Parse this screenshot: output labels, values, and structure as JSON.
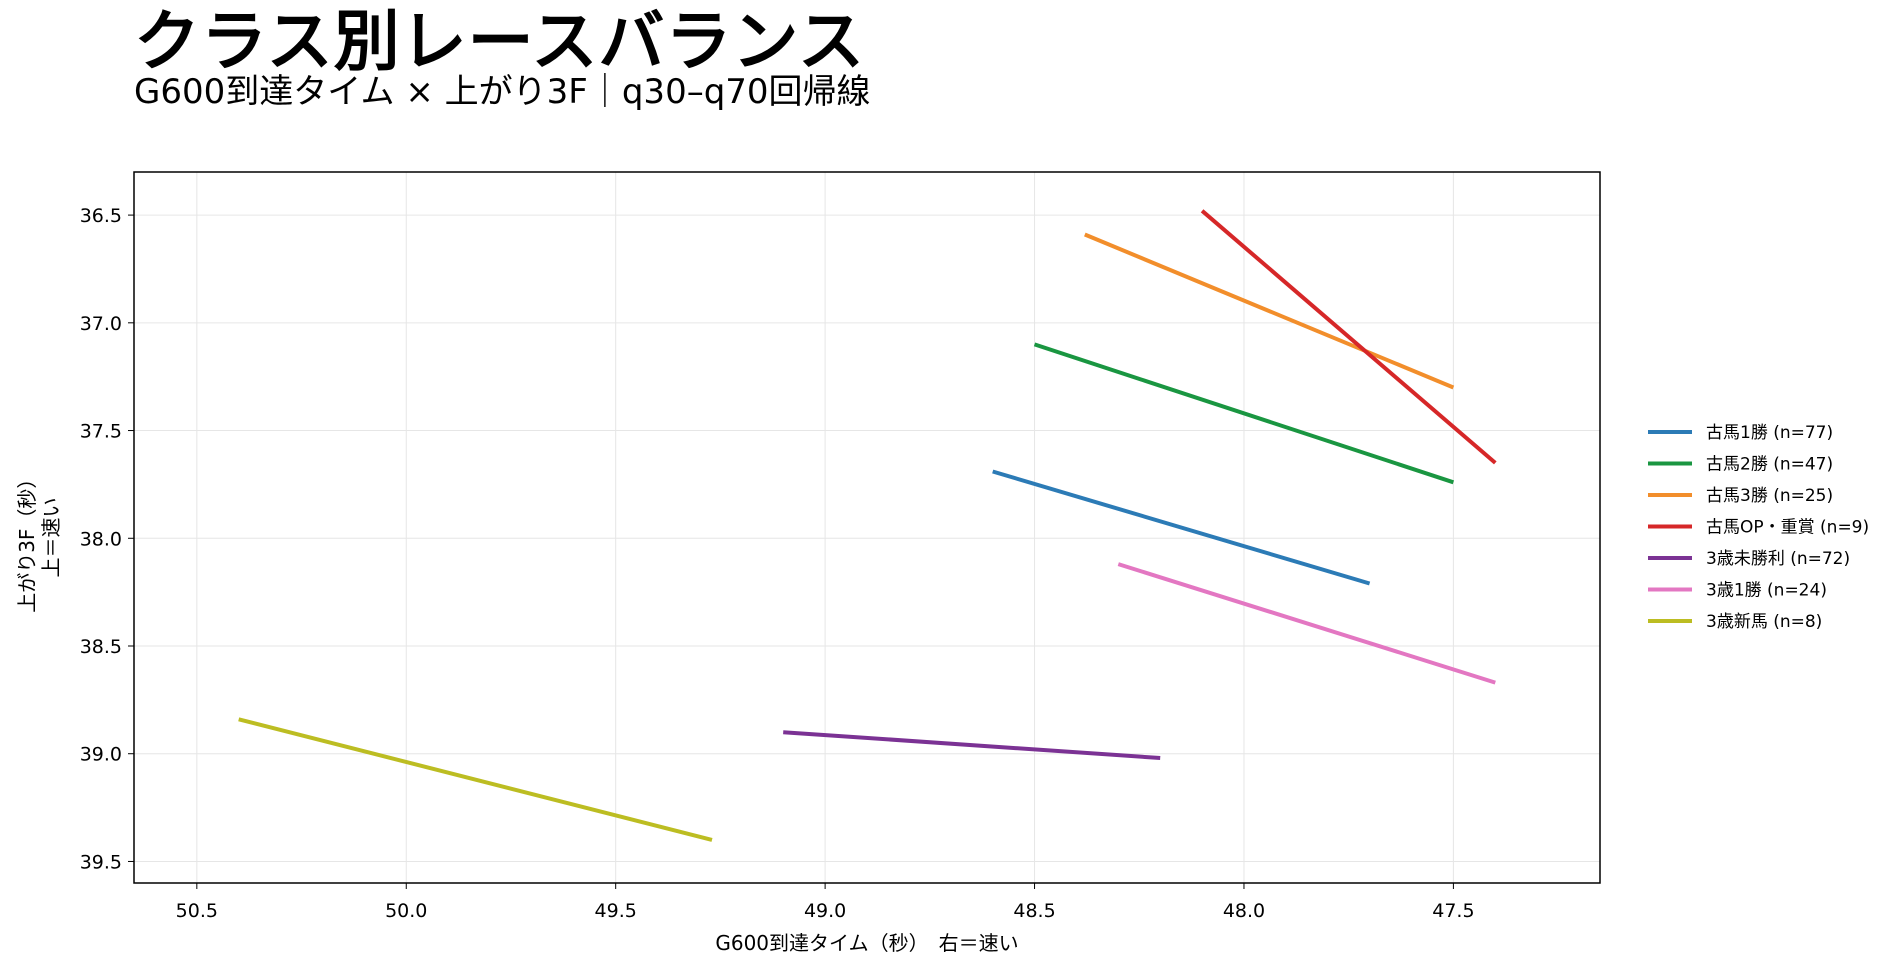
{
  "chart_data": {
    "type": "line",
    "title": "クラス別レースバランス",
    "subtitle": "G600到達タイム × 上がり3F｜q30–q70回帰線",
    "xlabel": "G600到達タイム（秒）　右＝速い",
    "ylabel": [
      "上がり3F（秒）",
      "上＝速い"
    ],
    "x_inverted": true,
    "y_inverted": true,
    "xlim": [
      50.65,
      47.15
    ],
    "ylim": [
      39.6,
      36.3
    ],
    "xticks": [
      50.5,
      50.0,
      49.5,
      49.0,
      48.5,
      48.0,
      47.5
    ],
    "yticks": [
      36.5,
      37.0,
      37.5,
      38.0,
      38.5,
      39.0,
      39.5
    ],
    "grid": true,
    "legend_position": "right",
    "series": [
      {
        "name": "古馬1勝 (n=77)",
        "color": "#2c7bb6",
        "x": [
          48.6,
          47.7
        ],
        "y": [
          37.69,
          38.21
        ]
      },
      {
        "name": "古馬2勝 (n=47)",
        "color": "#1a9641",
        "x": [
          48.5,
          47.5
        ],
        "y": [
          37.1,
          37.74
        ]
      },
      {
        "name": "古馬3勝 (n=25)",
        "color": "#f28e2b",
        "x": [
          48.38,
          47.5
        ],
        "y": [
          36.59,
          37.3
        ]
      },
      {
        "name": "古馬OP・重賞 (n=9)",
        "color": "#d62728",
        "x": [
          48.1,
          47.4
        ],
        "y": [
          36.48,
          37.65
        ]
      },
      {
        "name": "3歳未勝利 (n=72)",
        "color": "#7b3294",
        "x": [
          49.1,
          48.2
        ],
        "y": [
          38.9,
          39.02
        ]
      },
      {
        "name": "3歳1勝 (n=24)",
        "color": "#e377c2",
        "x": [
          48.3,
          47.4
        ],
        "y": [
          38.12,
          38.67
        ]
      },
      {
        "name": "3歳新馬 (n=8)",
        "color": "#bcbd22",
        "x": [
          50.4,
          49.27
        ],
        "y": [
          38.84,
          39.4
        ]
      }
    ]
  }
}
